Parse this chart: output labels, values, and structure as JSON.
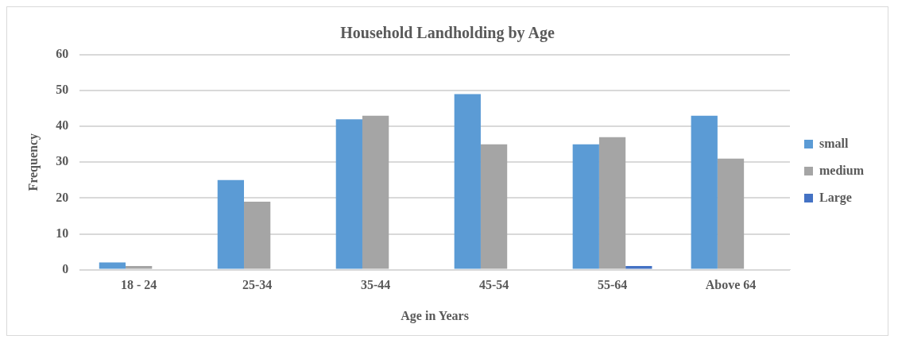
{
  "chart_data": {
    "type": "bar",
    "title": "Household Landholding by Age",
    "xlabel": "Age in Years",
    "ylabel": "Frequency",
    "categories": [
      "18 - 24",
      "25-34",
      "35-44",
      "45-54",
      "55-64",
      "Above 64"
    ],
    "series": [
      {
        "name": "small",
        "color": "#5b9bd5",
        "values": [
          2,
          25,
          42,
          49,
          35,
          43
        ]
      },
      {
        "name": "medium",
        "color": "#a5a5a5",
        "values": [
          1,
          19,
          43,
          35,
          37,
          31
        ]
      },
      {
        "name": "Large",
        "color": "#4472c4",
        "values": [
          0,
          0,
          0,
          0,
          1,
          0
        ]
      }
    ],
    "ylim": [
      0,
      60
    ],
    "yticks": [
      0,
      10,
      20,
      30,
      40,
      50,
      60
    ],
    "grid": "y",
    "legend": "right"
  }
}
